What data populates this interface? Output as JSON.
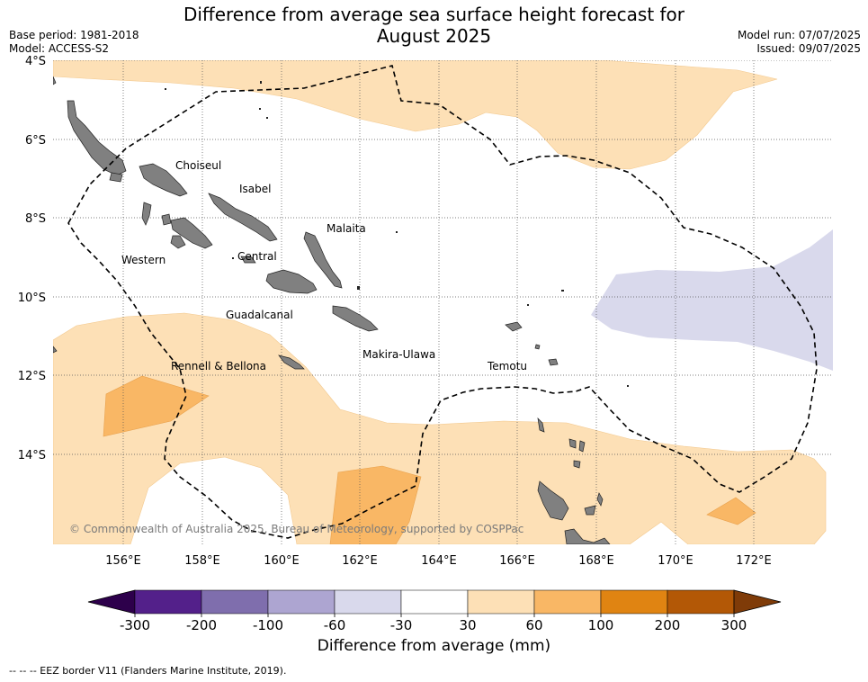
{
  "title_line1": "Difference from average sea surface height forecast for",
  "title_line2": "August 2025",
  "base_period": "Base period: 1981-2018",
  "model": "Model: ACCESS-S2",
  "model_run": "Model run: 07/07/2025",
  "issued": "Issued: 09/07/2025",
  "attribution": "© Commonwealth of Australia 2025, Bureau of Meteorology, supported by COSPPac",
  "footnote": "--  --  -- EEZ border V11 (Flanders Marine Institute, 2019).",
  "lat_labels": [
    "4°S",
    "6°S",
    "8°S",
    "10°S",
    "12°S",
    "14°S"
  ],
  "lon_labels": [
    "156°E",
    "158°E",
    "160°E",
    "162°E",
    "164°E",
    "166°E",
    "168°E",
    "170°E",
    "172°E"
  ],
  "provinces": [
    "Choiseul",
    "Isabel",
    "Malaita",
    "Western",
    "Central",
    "Guadalcanal",
    "Makira-Ulawa",
    "Rennell & Bellona",
    "Temotu"
  ],
  "colorbar": {
    "label": "Difference from average (mm)",
    "ticks": [
      "-300",
      "-200",
      "-100",
      "-60",
      "-30",
      "30",
      "60",
      "100",
      "200",
      "300"
    ],
    "colors": [
      "#53208a",
      "#7f6ead",
      "#ada5d1",
      "#d9d9ec",
      "#ffffff",
      "#fde0b6",
      "#f9b765",
      "#e08412",
      "#b35806"
    ],
    "under_color": "#2d004b",
    "over_color": "#7f3b08"
  }
}
